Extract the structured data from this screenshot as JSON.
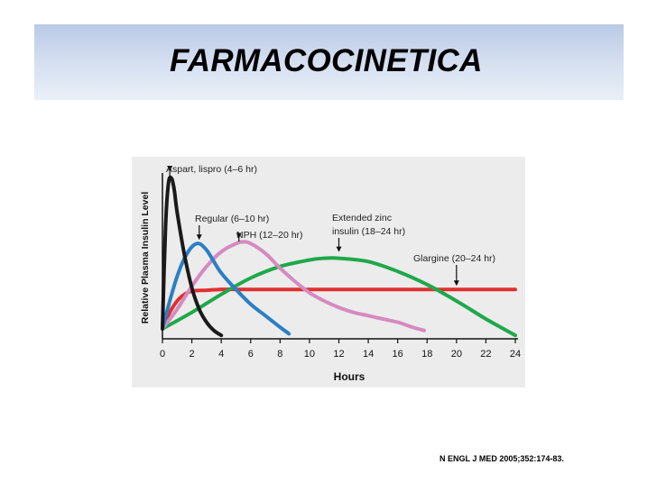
{
  "slide": {
    "title": "FARMACOCINETICA",
    "citation": "N ENGL J MED 2005;352:174-83."
  },
  "chart_data": {
    "type": "line",
    "title": "",
    "xlabel": "Hours",
    "ylabel": "Relative Plasma Insulin Level",
    "xlim": [
      0,
      24
    ],
    "ylim": [
      0,
      1
    ],
    "xticks": [
      0,
      2,
      4,
      6,
      8,
      10,
      12,
      14,
      16,
      18,
      20,
      22,
      24
    ],
    "grid": false,
    "series": [
      {
        "name": "Aspart, lispro (4–6 hr)",
        "color": "#1a1a1a",
        "x": [
          0,
          0.2,
          0.4,
          0.6,
          0.8,
          1.0,
          1.5,
          2.0,
          2.5,
          3.0,
          3.5,
          4.0
        ],
        "y": [
          0.05,
          0.65,
          0.93,
          0.97,
          0.9,
          0.76,
          0.5,
          0.3,
          0.17,
          0.09,
          0.04,
          0.01
        ]
      },
      {
        "name": "Regular (6–10 hr)",
        "color": "#2b7fc4",
        "x": [
          0,
          0.5,
          1.0,
          1.5,
          2.0,
          2.5,
          3.0,
          3.5,
          4.0,
          5.0,
          6.0,
          7.0,
          8.0,
          8.6
        ],
        "y": [
          0.05,
          0.22,
          0.37,
          0.48,
          0.55,
          0.57,
          0.53,
          0.46,
          0.39,
          0.29,
          0.2,
          0.13,
          0.06,
          0.02
        ]
      },
      {
        "name": "NPH (12–20 hr)",
        "color": "#d58ac0",
        "x": [
          0,
          1,
          2,
          3,
          4,
          5,
          5.5,
          6,
          7,
          8,
          9,
          10,
          11,
          12,
          13,
          14,
          15,
          16,
          17,
          17.8
        ],
        "y": [
          0.05,
          0.17,
          0.31,
          0.43,
          0.52,
          0.57,
          0.58,
          0.57,
          0.51,
          0.42,
          0.34,
          0.27,
          0.22,
          0.18,
          0.15,
          0.13,
          0.11,
          0.09,
          0.06,
          0.04
        ]
      },
      {
        "name": "Extended zinc insulin (18–24 hr)",
        "color": "#1fa84a",
        "x": [
          0,
          2,
          4,
          6,
          8,
          10,
          11,
          12,
          14,
          16,
          18,
          20,
          22,
          24
        ],
        "y": [
          0.05,
          0.15,
          0.26,
          0.36,
          0.43,
          0.47,
          0.48,
          0.48,
          0.46,
          0.4,
          0.32,
          0.22,
          0.11,
          0.01
        ]
      },
      {
        "name": "Glargine (20–24 hr)",
        "color": "#e03030",
        "x": [
          0,
          0.5,
          1.0,
          1.5,
          2.0,
          3.0,
          4.0,
          6.0,
          24
        ],
        "y": [
          0.05,
          0.15,
          0.22,
          0.26,
          0.28,
          0.285,
          0.29,
          0.29,
          0.29
        ]
      }
    ],
    "annotations": [
      {
        "text": "Aspart, lispro (4–6 hr)",
        "target_series": 0
      },
      {
        "text": "Regular (6–10 hr)",
        "target_series": 1
      },
      {
        "text": "NPH (12–20 hr)",
        "target_series": 2
      },
      {
        "text": "Extended zinc",
        "text2": "insulin (18–24 hr)",
        "target_series": 3
      },
      {
        "text": "Glargine (20–24 hr)",
        "target_series": 4
      }
    ]
  }
}
